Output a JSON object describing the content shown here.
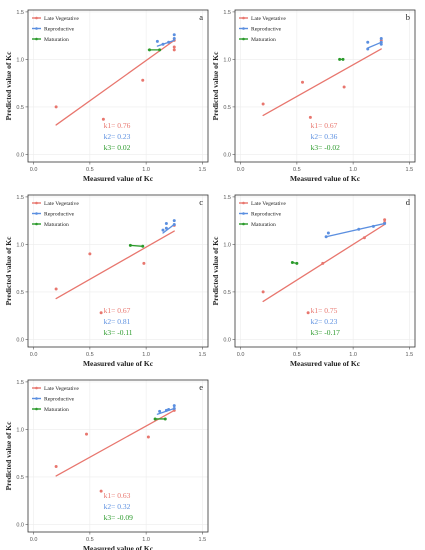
{
  "colors": {
    "late_vegetative": "#e8766e",
    "reproductive": "#5b8fe0",
    "maturation": "#2a9a2a",
    "panel_border": "#333333",
    "grid": "#ececec",
    "tick": "#555555"
  },
  "legend_labels": [
    "Late Vegetative",
    "Reproductive",
    "Maturation"
  ],
  "chart_data": [
    {
      "type": "scatter",
      "panel_label": "a",
      "xlabel": "Measured value of Kc",
      "ylabel": "Predicted value of Kc",
      "xlim": [
        -0.05,
        1.55
      ],
      "ylim": [
        -0.08,
        1.52
      ],
      "x_ticks": [
        "0.0",
        "0.5",
        "1.0",
        "1.5"
      ],
      "y_ticks": [
        "0.0",
        "0.5",
        "1.0",
        "1.5"
      ],
      "legend_position": "top-left",
      "series": [
        {
          "name": "Late Vegetative",
          "points": [
            [
              0.2,
              0.5
            ],
            [
              0.62,
              0.37
            ],
            [
              0.97,
              0.78
            ],
            [
              1.25,
              1.2
            ],
            [
              1.25,
              1.13
            ],
            [
              1.25,
              1.1
            ]
          ],
          "fit": [
            [
              0.2,
              0.31
            ],
            [
              1.25,
              1.2
            ]
          ]
        },
        {
          "name": "Reproductive",
          "points": [
            [
              1.1,
              1.19
            ],
            [
              1.15,
              1.16
            ],
            [
              1.2,
              1.18
            ],
            [
              1.25,
              1.26
            ],
            [
              1.25,
              1.22
            ]
          ],
          "fit": [
            [
              1.1,
              1.14
            ],
            [
              1.25,
              1.2
            ]
          ]
        },
        {
          "name": "Maturation",
          "points": [
            [
              1.03,
              1.1
            ],
            [
              1.12,
              1.1
            ]
          ],
          "fit": [
            [
              1.02,
              1.1
            ],
            [
              1.12,
              1.1
            ]
          ]
        }
      ],
      "annotations": [
        "k1= 0.76",
        "k2= 0.23",
        "k3= 0.02"
      ]
    },
    {
      "type": "scatter",
      "panel_label": "b",
      "xlabel": "Measured value of Kc",
      "ylabel": "Predicted value of Kc",
      "xlim": [
        -0.05,
        1.55
      ],
      "ylim": [
        -0.08,
        1.52
      ],
      "x_ticks": [
        "0.0",
        "0.5",
        "1.0",
        "1.5"
      ],
      "y_ticks": [
        "0.0",
        "0.5",
        "1.0",
        "1.5"
      ],
      "legend_position": "top-left",
      "series": [
        {
          "name": "Late Vegetative",
          "points": [
            [
              0.2,
              0.53
            ],
            [
              0.55,
              0.76
            ],
            [
              0.62,
              0.39
            ],
            [
              0.92,
              0.71
            ],
            [
              1.25,
              1.2
            ]
          ],
          "fit": [
            [
              0.2,
              0.41
            ],
            [
              1.25,
              1.11
            ]
          ]
        },
        {
          "name": "Reproductive",
          "points": [
            [
              1.13,
              1.18
            ],
            [
              1.13,
              1.11
            ],
            [
              1.25,
              1.22
            ],
            [
              1.25,
              1.18
            ],
            [
              1.25,
              1.16
            ]
          ],
          "fit": [
            [
              1.13,
              1.12
            ],
            [
              1.25,
              1.18
            ]
          ]
        },
        {
          "name": "Maturation",
          "points": [
            [
              0.88,
              1.0
            ],
            [
              0.91,
              1.0
            ]
          ],
          "fit": [
            [
              0.88,
              1.0
            ],
            [
              0.91,
              1.0
            ]
          ]
        }
      ],
      "annotations": [
        "k1= 0.67",
        "k2= 0.36",
        "k3= -0.02"
      ]
    },
    {
      "type": "scatter",
      "panel_label": "c",
      "xlabel": "Measured value of Kc",
      "ylabel": "Predicted value of Kc",
      "xlim": [
        -0.05,
        1.55
      ],
      "ylim": [
        -0.08,
        1.52
      ],
      "x_ticks": [
        "0.0",
        "0.5",
        "1.0",
        "1.5"
      ],
      "y_ticks": [
        "0.0",
        "0.5",
        "1.0",
        "1.5"
      ],
      "legend_position": "top-left",
      "series": [
        {
          "name": "Late Vegetative",
          "points": [
            [
              0.2,
              0.53
            ],
            [
              0.5,
              0.9
            ],
            [
              0.6,
              0.28
            ],
            [
              0.98,
              0.8
            ],
            [
              1.25,
              1.2
            ]
          ],
          "fit": [
            [
              0.2,
              0.43
            ],
            [
              1.25,
              1.14
            ]
          ]
        },
        {
          "name": "Reproductive",
          "points": [
            [
              1.15,
              1.15
            ],
            [
              1.18,
              1.22
            ],
            [
              1.18,
              1.17
            ],
            [
              1.25,
              1.25
            ],
            [
              1.25,
              1.21
            ]
          ],
          "fit": [
            [
              1.15,
              1.12
            ],
            [
              1.25,
              1.21
            ]
          ]
        },
        {
          "name": "Maturation",
          "points": [
            [
              0.86,
              0.99
            ],
            [
              0.97,
              0.98
            ]
          ],
          "fit": [
            [
              0.86,
              0.99
            ],
            [
              0.97,
              0.98
            ]
          ]
        }
      ],
      "annotations": [
        "k1= 0.67",
        "k2= 0.81",
        "k3= -0.11"
      ]
    },
    {
      "type": "scatter",
      "panel_label": "d",
      "xlabel": "Measured value of Kc",
      "ylabel": "Predicted value of Kc",
      "xlim": [
        -0.05,
        1.55
      ],
      "ylim": [
        -0.08,
        1.52
      ],
      "x_ticks": [
        "0.0",
        "0.5",
        "1.0",
        "1.5"
      ],
      "y_ticks": [
        "0.0",
        "0.5",
        "1.0",
        "1.5"
      ],
      "legend_position": "top-left",
      "series": [
        {
          "name": "Late Vegetative",
          "points": [
            [
              0.2,
              0.5
            ],
            [
              0.6,
              0.28
            ],
            [
              0.73,
              0.8
            ],
            [
              1.1,
              1.07
            ],
            [
              1.28,
              1.26
            ],
            [
              1.28,
              1.23
            ]
          ],
          "fit": [
            [
              0.2,
              0.4
            ],
            [
              1.28,
              1.21
            ]
          ]
        },
        {
          "name": "Reproductive",
          "points": [
            [
              0.76,
              1.08
            ],
            [
              0.78,
              1.12
            ],
            [
              1.05,
              1.16
            ],
            [
              1.18,
              1.19
            ],
            [
              1.28,
              1.22
            ]
          ],
          "fit": [
            [
              0.76,
              1.08
            ],
            [
              1.28,
              1.22
            ]
          ]
        },
        {
          "name": "Maturation",
          "points": [
            [
              0.46,
              0.81
            ],
            [
              0.5,
              0.8
            ]
          ],
          "fit": [
            [
              0.46,
              0.81
            ],
            [
              0.5,
              0.8
            ]
          ]
        }
      ],
      "annotations": [
        "k1= 0.75",
        "k2= 0.23",
        "k3= -0.17"
      ]
    },
    {
      "type": "scatter",
      "panel_label": "e",
      "xlabel": "Measured value of Kc",
      "ylabel": "Predicted value of Kc",
      "xlim": [
        -0.05,
        1.55
      ],
      "ylim": [
        -0.08,
        1.52
      ],
      "x_ticks": [
        "0.0",
        "0.5",
        "1.0",
        "1.5"
      ],
      "y_ticks": [
        "0.0",
        "0.5",
        "1.0",
        "1.5"
      ],
      "legend_position": "top-left",
      "series": [
        {
          "name": "Late Vegetative",
          "points": [
            [
              0.2,
              0.61
            ],
            [
              0.47,
              0.95
            ],
            [
              0.6,
              0.35
            ],
            [
              1.02,
              0.92
            ],
            [
              1.25,
              1.2
            ]
          ],
          "fit": [
            [
              0.2,
              0.51
            ],
            [
              1.25,
              1.2
            ]
          ]
        },
        {
          "name": "Reproductive",
          "points": [
            [
              1.12,
              1.19
            ],
            [
              1.18,
              1.2
            ],
            [
              1.2,
              1.21
            ],
            [
              1.25,
              1.25
            ],
            [
              1.25,
              1.22
            ]
          ],
          "fit": [
            [
              1.1,
              1.16
            ],
            [
              1.25,
              1.22
            ]
          ]
        },
        {
          "name": "Maturation",
          "points": [
            [
              1.08,
              1.11
            ],
            [
              1.17,
              1.11
            ]
          ],
          "fit": [
            [
              1.08,
              1.11
            ],
            [
              1.17,
              1.11
            ]
          ]
        }
      ],
      "annotations": [
        "k1= 0.63",
        "k2= 0.32",
        "k3= -0.09"
      ]
    }
  ]
}
